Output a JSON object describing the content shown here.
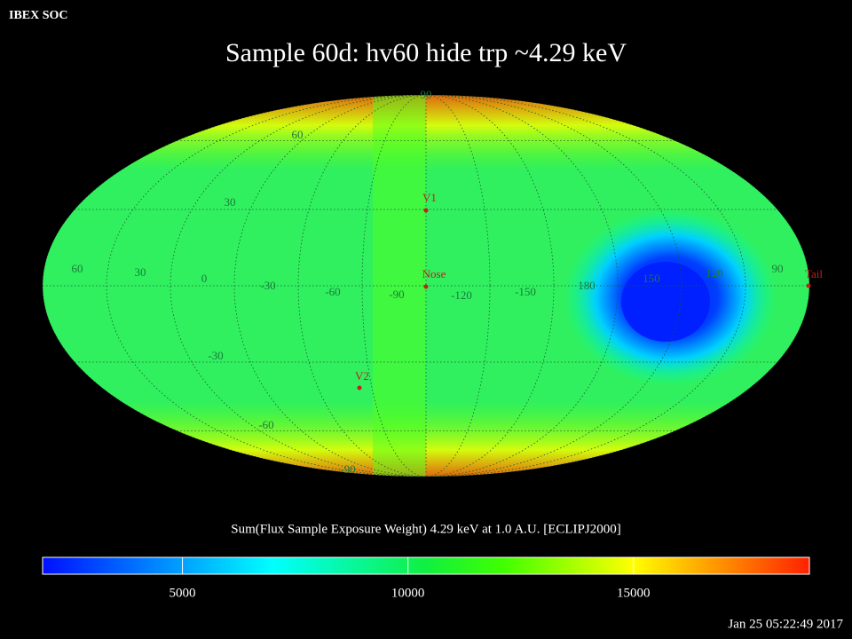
{
  "header": {
    "source": "IBEX SOC",
    "title": "Sample 60d: hv60 hide trp ~4.29 keV",
    "timestamp": "Jan 25 05:22:49 2017"
  },
  "map": {
    "longitude_labels": [
      "60",
      "30",
      "0",
      "-30",
      "-60",
      "-90",
      "-120",
      "-150",
      "180",
      "150",
      "120",
      "90"
    ],
    "latitude_labels": [
      "90",
      "60",
      "30",
      "-30",
      "-60",
      "-90"
    ],
    "markers": [
      "V1",
      "Nose",
      "V2",
      "Tail"
    ]
  },
  "colorbar": {
    "label": "Sum(Flux Sample Exposure Weight)  4.29 keV at 1.0 A.U. [ECLIPJ2000]",
    "range": [
      1900,
      18900
    ],
    "ticks": [
      5000,
      10000,
      15000
    ]
  }
}
